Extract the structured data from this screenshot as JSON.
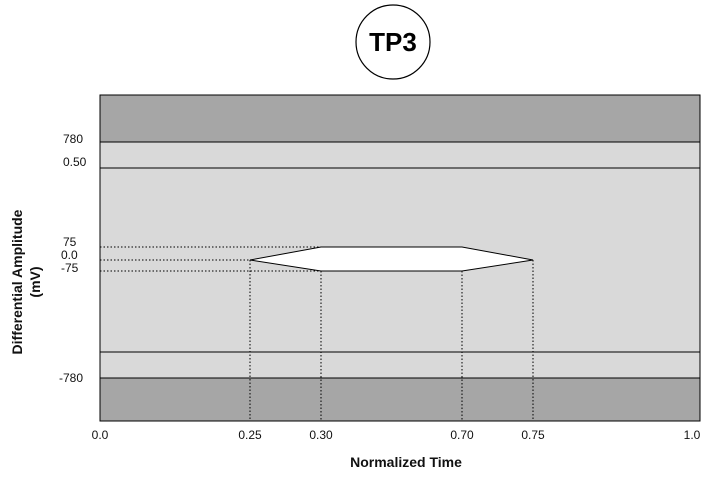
{
  "badge": {
    "text": "TP3"
  },
  "axes": {
    "xlabel": "Normalized Time",
    "ylabel_line1": "Differential Amplitude",
    "ylabel_line2": "(mV)"
  },
  "x_ticks": [
    "0.0",
    "0.25",
    "0.30",
    "0.70",
    "0.75",
    "1.0"
  ],
  "y_labels": {
    "upper_limit": "780",
    "upper_norm": "0.50",
    "eye_top": "75",
    "eye_center": "0.0",
    "eye_bottom": "-75",
    "lower_limit": "-780"
  },
  "eye_mask": {
    "x_left": 0.25,
    "x_inner_left": 0.3,
    "x_inner_right": 0.7,
    "x_right": 0.75,
    "amplitude_top_mV": 75,
    "amplitude_bottom_mV": -75
  },
  "colors": {
    "outer_region": "#a6a6a6",
    "inner_region": "#d9d9d9",
    "eye_fill": "#ffffff",
    "line": "#000000"
  }
}
